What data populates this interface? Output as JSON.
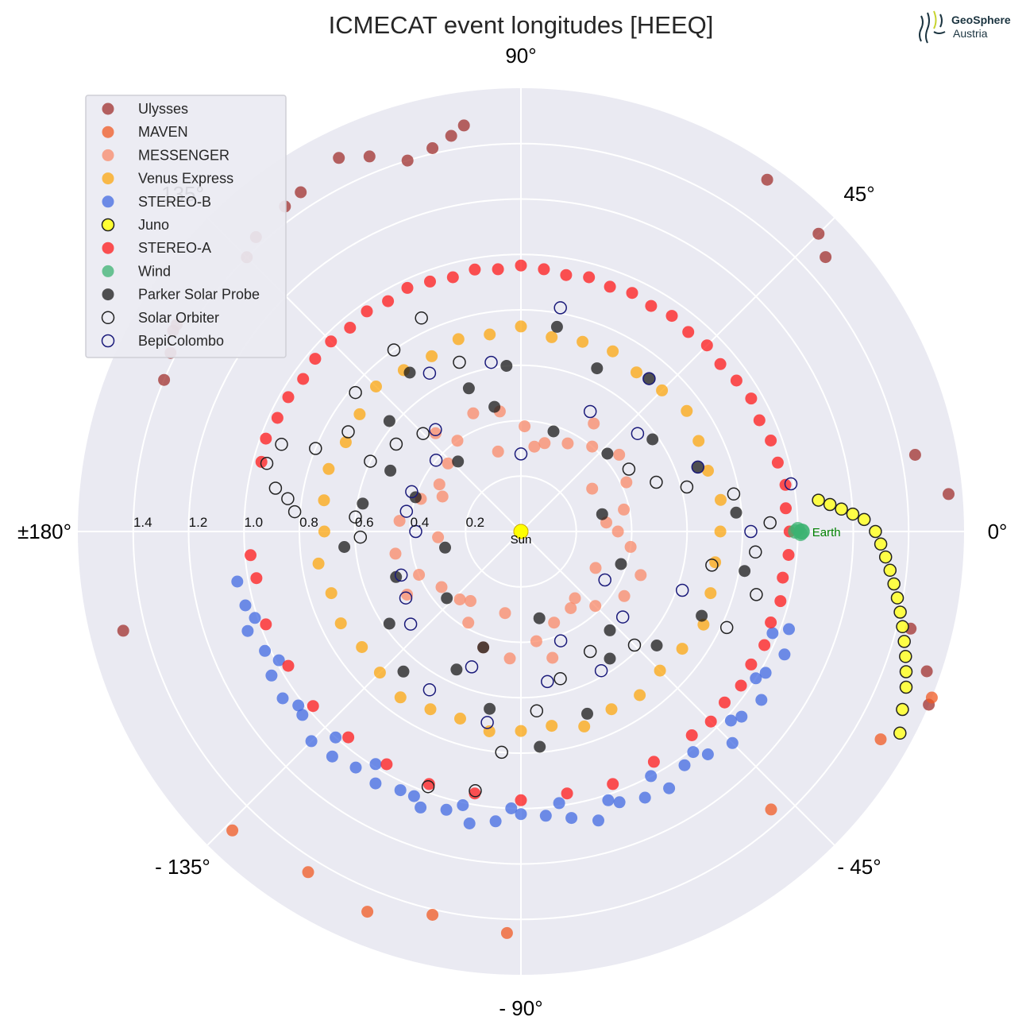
{
  "chart_data": {
    "type": "scatter",
    "projection": "polar",
    "title": "ICMECAT event longitudes [HEEQ]",
    "angle_ticks": [
      "0°",
      "45°",
      "90°",
      "135°",
      "±180°",
      "- 135°",
      "- 90°",
      "- 45°"
    ],
    "radial_ticks": [
      "0.2",
      "0.4",
      "0.6",
      "0.8",
      "1.0",
      "1.2",
      "1.4"
    ],
    "rlim": [
      0,
      1.6
    ],
    "grid": true,
    "legend_position": "top-left",
    "annotations": {
      "sun": "Sun",
      "earth": "Earth"
    },
    "logo": {
      "line1": "GeoSphere",
      "line2": "Austria"
    },
    "colors": {
      "background": "#eaeaf2",
      "grid": "#ffffff",
      "sun": "#ffff00",
      "earth": "#3cb371",
      "earth_label": "#008000"
    },
    "series": [
      {
        "name": "Ulysses",
        "style": "filled",
        "color": "#a0302e",
        "angles": [
          98,
          100,
          103,
          107,
          112,
          116,
          123,
          126,
          132,
          135,
          149,
          150,
          153,
          157,
          -166,
          55,
          45,
          42,
          11,
          5,
          -14,
          -19,
          -23
        ],
        "radii": [
          1.48,
          1.45,
          1.42,
          1.4,
          1.46,
          1.5,
          1.46,
          1.45,
          1.43,
          1.4,
          1.45,
          1.45,
          1.42,
          1.4,
          1.48,
          1.55,
          1.52,
          1.48,
          1.45,
          1.55,
          1.45,
          1.55,
          1.6
        ]
      },
      {
        "name": "MAVEN",
        "style": "filled",
        "color": "#f05a23",
        "angles": [
          -92,
          -103,
          -112,
          -122,
          -134,
          -48,
          -30,
          -22
        ],
        "radii": [
          1.45,
          1.42,
          1.48,
          1.45,
          1.5,
          1.35,
          1.5,
          1.6
        ]
      },
      {
        "name": "MESSENGER",
        "style": "filled",
        "color": "#fa8a68",
        "angles": [
          0,
          12,
          25,
          38,
          50,
          62,
          75,
          88,
          100,
          112,
          125,
          137,
          150,
          162,
          175,
          -170,
          -157,
          -145,
          -132,
          -120,
          -108,
          -95,
          -82,
          -70,
          -57,
          -45,
          -32,
          -20,
          -8,
          6,
          31,
          56,
          81,
          106,
          131,
          156,
          -176,
          -151,
          -126,
          -101,
          -76,
          -51,
          -26
        ],
        "radii": [
          0.35,
          0.38,
          0.42,
          0.45,
          0.4,
          0.36,
          0.33,
          0.38,
          0.44,
          0.46,
          0.4,
          0.36,
          0.34,
          0.38,
          0.44,
          0.46,
          0.4,
          0.35,
          0.33,
          0.38,
          0.44,
          0.46,
          0.4,
          0.35,
          0.33,
          0.38,
          0.44,
          0.46,
          0.4,
          0.31,
          0.3,
          0.47,
          0.31,
          0.3,
          0.47,
          0.31,
          0.3,
          0.47,
          0.31,
          0.3,
          0.47,
          0.31,
          0.3
        ]
      },
      {
        "name": "Venus Express",
        "style": "filled",
        "color": "#fca70f",
        "angles": [
          0,
          9,
          18,
          27,
          36,
          45,
          54,
          63,
          72,
          81,
          90,
          99,
          108,
          117,
          126,
          135,
          144,
          153,
          162,
          171,
          180,
          -171,
          -162,
          -153,
          -144,
          -135,
          -126,
          -117,
          -108,
          -99,
          -90,
          -81,
          -72,
          -63,
          -54,
          -45,
          -36,
          -27,
          -18,
          -9
        ],
        "radii": [
          0.72,
          0.73,
          0.71,
          0.72,
          0.74,
          0.72,
          0.71,
          0.73,
          0.72,
          0.71,
          0.74,
          0.72,
          0.73,
          0.71,
          0.72,
          0.74,
          0.72,
          0.71,
          0.73,
          0.72,
          0.71,
          0.74,
          0.72,
          0.73,
          0.71,
          0.72,
          0.74,
          0.72,
          0.71,
          0.73,
          0.72,
          0.71,
          0.74,
          0.72,
          0.73,
          0.71,
          0.72,
          0.74,
          0.72,
          0.71
        ]
      },
      {
        "name": "STEREO-B",
        "style": "filled",
        "color": "#4169e1",
        "angles": [
          -20,
          -25,
          -30,
          -35,
          -40,
          -45,
          -50,
          -55,
          -60,
          -65,
          -70,
          -75,
          -80,
          -85,
          -90,
          -95,
          -100,
          -105,
          -110,
          -115,
          -120,
          -125,
          -130,
          -135,
          -140,
          -145,
          -150,
          -155,
          -160,
          -165,
          -170,
          -22,
          -32,
          -42,
          -52,
          -62,
          -72,
          -82,
          -92,
          -102,
          -112,
          -122,
          -132,
          -142,
          -152,
          -162
        ],
        "radii": [
          1.03,
          1.05,
          1.02,
          1.06,
          1.04,
          1.08,
          1.05,
          1.03,
          1.07,
          1.06,
          1.04,
          1.08,
          1.05,
          1.03,
          1.02,
          1.05,
          1.07,
          1.04,
          1.06,
          1.03,
          1.05,
          1.04,
          1.06,
          1.07,
          1.03,
          1.05,
          1.04,
          1.02,
          1.05,
          1.03,
          1.04,
          0.98,
          1.0,
          1.02,
          1.01,
          1.0,
          1.02,
          0.99,
          1.0,
          1.01,
          1.03,
          0.99,
          1.0,
          1.02,
          0.99,
          1.01
        ]
      },
      {
        "name": "Juno",
        "style": "filled-edged",
        "color": "#ffff33",
        "angles": [
          6,
          5,
          4,
          3,
          2,
          0,
          -2,
          -4,
          -6,
          -8,
          -10,
          -12,
          -14,
          -16,
          -18,
          -20,
          -22,
          -25,
          -28
        ],
        "radii": [
          1.08,
          1.12,
          1.16,
          1.2,
          1.24,
          1.28,
          1.3,
          1.32,
          1.34,
          1.36,
          1.38,
          1.4,
          1.42,
          1.44,
          1.46,
          1.48,
          1.5,
          1.52,
          1.55
        ]
      },
      {
        "name": "STEREO-A",
        "style": "filled",
        "color": "#ff1a1a",
        "angles": [
          0,
          5,
          10,
          15,
          20,
          25,
          30,
          35,
          40,
          45,
          50,
          55,
          60,
          65,
          70,
          75,
          80,
          85,
          90,
          95,
          100,
          105,
          110,
          115,
          120,
          125,
          130,
          135,
          140,
          145,
          150,
          155,
          160,
          165,
          -175,
          -170,
          -160,
          -150,
          -140,
          -130,
          -120,
          -110,
          -100,
          -90,
          -80,
          -70,
          -60,
          -50,
          -45,
          -40,
          -35,
          -30,
          -25,
          -20,
          -15,
          -10,
          -5
        ],
        "radii": [
          0.97,
          0.96,
          0.97,
          0.96,
          0.96,
          0.95,
          0.96,
          0.95,
          0.94,
          0.95,
          0.94,
          0.95,
          0.94,
          0.95,
          0.94,
          0.95,
          0.94,
          0.95,
          0.96,
          0.95,
          0.96,
          0.95,
          0.96,
          0.97,
          0.96,
          0.97,
          0.96,
          0.97,
          0.97,
          0.96,
          0.97,
          0.97,
          0.98,
          0.97,
          0.98,
          0.97,
          0.98,
          0.97,
          0.98,
          0.97,
          0.97,
          0.97,
          0.96,
          0.97,
          0.96,
          0.97,
          0.96,
          0.96,
          0.97,
          0.96,
          0.97,
          0.96,
          0.97,
          0.96,
          0.97,
          0.96,
          0.97
        ]
      },
      {
        "name": "Wind",
        "style": "filled",
        "color": "#3cb371",
        "angles": [
          0,
          0.5,
          -0.5
        ],
        "radii": [
          0.99,
          1.0,
          1.01
        ]
      },
      {
        "name": "Parker Solar Probe",
        "style": "filled",
        "color": "#1a1a1a",
        "angles": [
          5,
          20,
          35,
          50,
          65,
          80,
          95,
          110,
          125,
          140,
          155,
          170,
          -175,
          -160,
          -145,
          -130,
          -115,
          -100,
          -85,
          -70,
          -55,
          -40,
          -25,
          -10,
          12,
          42,
          72,
          102,
          132,
          162,
          -168,
          -138,
          -108,
          -78,
          -48,
          -18
        ],
        "radii": [
          0.78,
          0.68,
          0.58,
          0.72,
          0.65,
          0.75,
          0.6,
          0.55,
          0.7,
          0.62,
          0.52,
          0.58,
          0.64,
          0.48,
          0.58,
          0.66,
          0.55,
          0.65,
          0.78,
          0.7,
          0.56,
          0.64,
          0.72,
          0.82,
          0.3,
          0.42,
          0.38,
          0.46,
          0.34,
          0.4,
          0.28,
          0.36,
          0.44,
          0.32,
          0.48,
          0.38
        ]
      },
      {
        "name": "Solar Orbiter",
        "style": "open-dark",
        "color": "#333333",
        "angles": [
          -5,
          -15,
          -25,
          -10,
          2,
          10,
          160,
          165,
          170,
          172,
          175,
          158,
          150,
          155,
          145,
          135,
          125,
          115,
          -100,
          -110,
          -95,
          -85,
          -75,
          -60,
          -45,
          30,
          20,
          15,
          175,
          -178,
          140,
          110
        ],
        "radii": [
          0.85,
          0.88,
          0.82,
          0.7,
          0.9,
          0.78,
          0.92,
          0.95,
          0.9,
          0.85,
          0.82,
          0.8,
          0.72,
          0.6,
          0.55,
          0.5,
          0.8,
          0.85,
          0.95,
          0.98,
          0.8,
          0.65,
          0.55,
          0.5,
          0.58,
          0.45,
          0.52,
          0.62,
          0.6,
          0.58,
          0.78,
          0.65
        ]
      },
      {
        "name": "BepiColombo",
        "style": "open-navy",
        "color": "#1a1a7a",
        "angles": [
          80,
          60,
          40,
          20,
          0,
          -20,
          -40,
          -60,
          -80,
          -100,
          -120,
          -140,
          -160,
          180,
          160,
          140,
          120,
          100,
          10,
          -30,
          -70,
          -110,
          -150,
          170,
          130,
          90,
          50
        ],
        "radii": [
          0.82,
          0.5,
          0.55,
          0.68,
          0.83,
          0.62,
          0.48,
          0.58,
          0.55,
          0.7,
          0.66,
          0.52,
          0.46,
          0.38,
          0.42,
          0.4,
          0.66,
          0.62,
          0.99,
          0.35,
          0.42,
          0.52,
          0.48,
          0.42,
          0.48,
          0.28,
          0.72
        ]
      }
    ]
  }
}
